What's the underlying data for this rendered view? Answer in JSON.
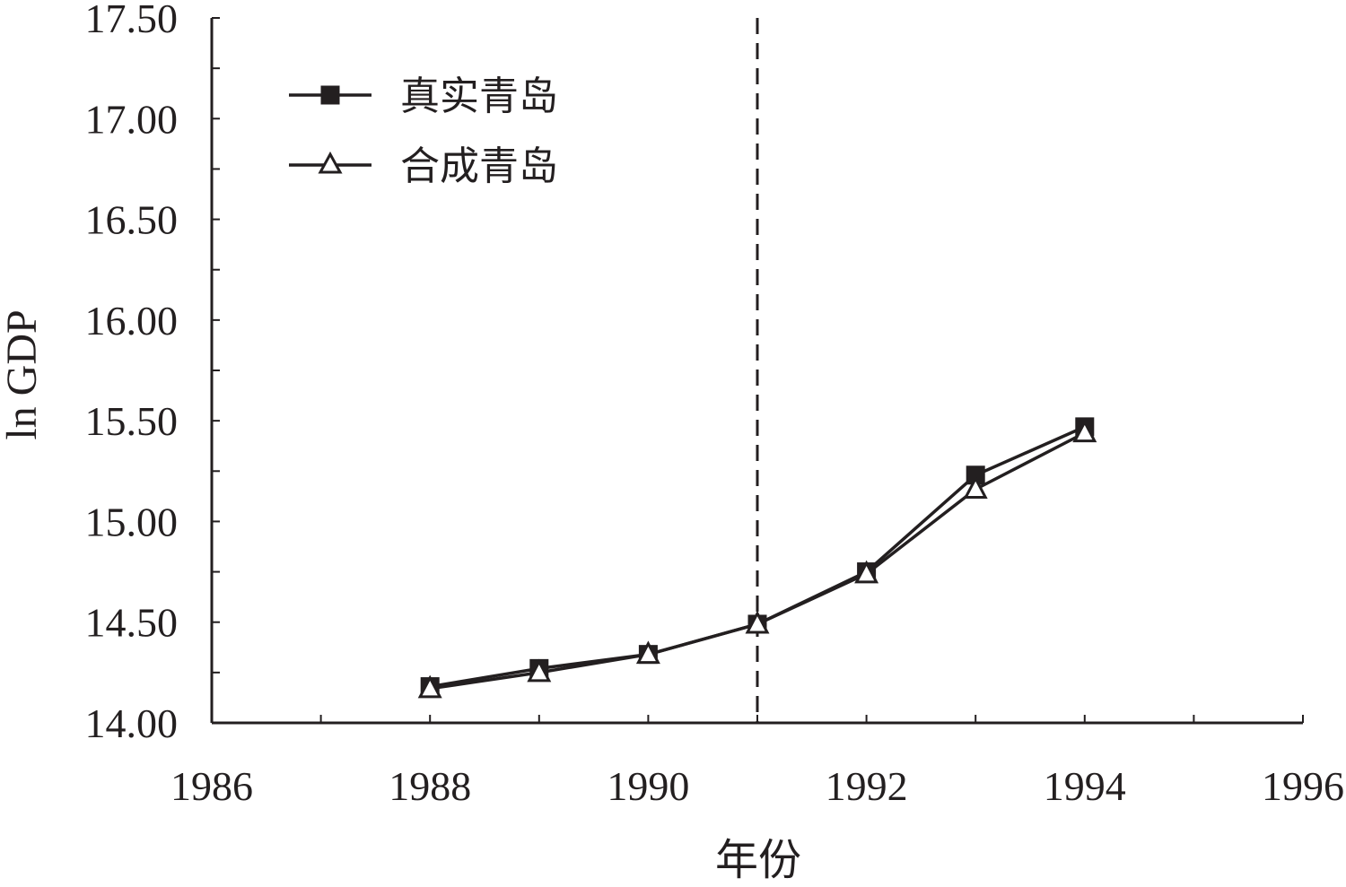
{
  "chart_data": {
    "type": "line",
    "xlabel": "年份",
    "ylabel": "ln GDP",
    "xlim": [
      1986,
      1996
    ],
    "ylim": [
      14.0,
      17.5
    ],
    "x_ticks": [
      1986,
      1988,
      1990,
      1992,
      1994,
      1996
    ],
    "x_tick_labels": [
      "1986",
      "1988",
      "1990",
      "1992",
      "1994",
      "1996"
    ],
    "y_ticks": [
      14.0,
      14.5,
      15.0,
      15.5,
      16.0,
      16.5,
      17.0,
      17.5
    ],
    "y_tick_labels": [
      "14.00",
      "14.50",
      "15.00",
      "15.50",
      "16.00",
      "16.50",
      "17.00",
      "17.50"
    ],
    "x_minor_step": 1,
    "y_minor_step": 0.25,
    "vertical_reference_line": {
      "x": 1991,
      "style": "dashed"
    },
    "legend_placement": "top-left",
    "grid": false,
    "series": [
      {
        "name": "真实青岛",
        "marker": "filled-square",
        "x": [
          1988,
          1989,
          1990,
          1991,
          1992,
          1993,
          1994
        ],
        "values": [
          14.18,
          14.27,
          14.34,
          14.49,
          14.75,
          15.23,
          15.47
        ]
      },
      {
        "name": "合成青岛",
        "marker": "open-triangle",
        "x": [
          1988,
          1989,
          1990,
          1991,
          1992,
          1993,
          1994
        ],
        "values": [
          14.17,
          14.25,
          14.34,
          14.49,
          14.74,
          15.16,
          15.44
        ]
      }
    ]
  }
}
